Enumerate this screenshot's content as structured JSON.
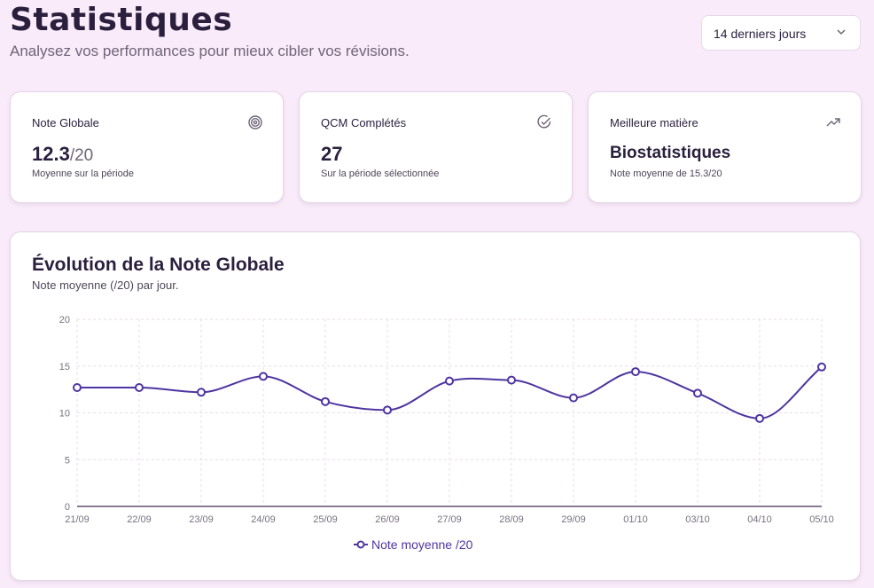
{
  "header": {
    "title": "Statistiques",
    "subtitle": "Analysez vos performances pour mieux cibler vos révisions."
  },
  "period_select": {
    "value": "14 derniers jours",
    "icon": "chevron-down-icon"
  },
  "cards": [
    {
      "label": "Note Globale",
      "value": "12.3",
      "denominator": "/20",
      "sub": "Moyenne sur la période",
      "icon": "target-icon"
    },
    {
      "label": "QCM Complétés",
      "value": "27",
      "sub": "Sur la période sélectionnée",
      "icon": "check-circle-icon"
    },
    {
      "label": "Meilleure matière",
      "value": "Biostatistiques",
      "sub": "Note moyenne de 15.3/20",
      "icon": "trending-up-icon"
    }
  ],
  "chart_card": {
    "title": "Évolution de la Note Globale",
    "subtitle": "Note moyenne (/20) par jour."
  },
  "colors": {
    "accent": "#4f35a1",
    "background": "#f9ebf9",
    "grid": "#eadbe8"
  },
  "chart_data": {
    "type": "line",
    "categories": [
      "21/09",
      "22/09",
      "23/09",
      "24/09",
      "25/09",
      "26/09",
      "27/09",
      "28/09",
      "29/09",
      "01/10",
      "03/10",
      "04/10",
      "05/10"
    ],
    "series": [
      {
        "name": "Note moyenne /20",
        "values": [
          12.7,
          12.7,
          12.2,
          13.9,
          11.2,
          10.3,
          13.4,
          13.5,
          11.6,
          14.4,
          12.1,
          9.4,
          14.9
        ]
      }
    ],
    "yticks": [
      "0",
      "5",
      "10",
      "15",
      "20"
    ],
    "ylim": [
      0,
      20
    ],
    "grid": true,
    "legend": "bottom",
    "curve": "smooth"
  }
}
